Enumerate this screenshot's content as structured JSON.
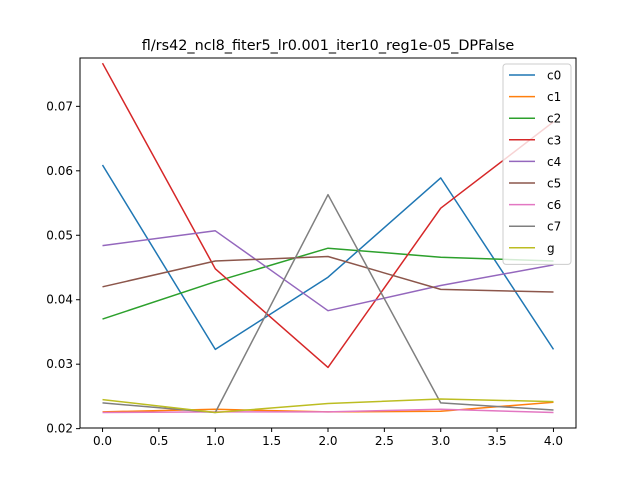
{
  "chart_data": {
    "type": "line",
    "title": "fl/rs42_ncl8_fiter5_lr0.001_iter10_reg1e-05_DPFalse",
    "xlabel": "",
    "ylabel": "",
    "x": [
      0,
      1,
      2,
      3,
      4
    ],
    "xlim": [
      -0.2,
      4.2
    ],
    "ylim": [
      0.0201,
      0.0775
    ],
    "xticks": [
      0,
      0.5,
      1,
      1.5,
      2,
      2.5,
      3,
      3.5,
      4
    ],
    "xtick_labels": [
      "0.0",
      "0.5",
      "1.0",
      "1.5",
      "2.0",
      "2.5",
      "3.0",
      "3.5",
      "4.0"
    ],
    "yticks": [
      0.02,
      0.03,
      0.04,
      0.05,
      0.06,
      0.07
    ],
    "ytick_labels": [
      "0.02",
      "0.03",
      "0.04",
      "0.05",
      "0.06",
      "0.07"
    ],
    "grid": false,
    "legend_position": "top-right",
    "series": [
      {
        "name": "c0",
        "color": "#1f77b4",
        "values": [
          0.0609,
          0.0323,
          0.0435,
          0.0589,
          0.0323
        ]
      },
      {
        "name": "c1",
        "color": "#ff7f0e",
        "values": [
          0.0226,
          0.023,
          0.0226,
          0.0227,
          0.0241
        ]
      },
      {
        "name": "c2",
        "color": "#2ca02c",
        "values": [
          0.037,
          0.0428,
          0.048,
          0.0466,
          0.046
        ]
      },
      {
        "name": "c3",
        "color": "#d62728",
        "values": [
          0.0767,
          0.0448,
          0.0295,
          0.0542,
          0.0676
        ]
      },
      {
        "name": "c4",
        "color": "#9467bd",
        "values": [
          0.0484,
          0.0507,
          0.0383,
          0.0422,
          0.0454
        ]
      },
      {
        "name": "c5",
        "color": "#8c564b",
        "values": [
          0.042,
          0.046,
          0.0467,
          0.0416,
          0.0412
        ]
      },
      {
        "name": "c6",
        "color": "#e377c2",
        "values": [
          0.0225,
          0.0226,
          0.0226,
          0.023,
          0.0225
        ]
      },
      {
        "name": "c7",
        "color": "#7f7f7f",
        "values": [
          0.024,
          0.0225,
          0.0563,
          0.024,
          0.0229
        ]
      },
      {
        "name": "g",
        "color": "#bcbd22",
        "values": [
          0.0245,
          0.0225,
          0.0239,
          0.0246,
          0.0242
        ]
      }
    ]
  }
}
